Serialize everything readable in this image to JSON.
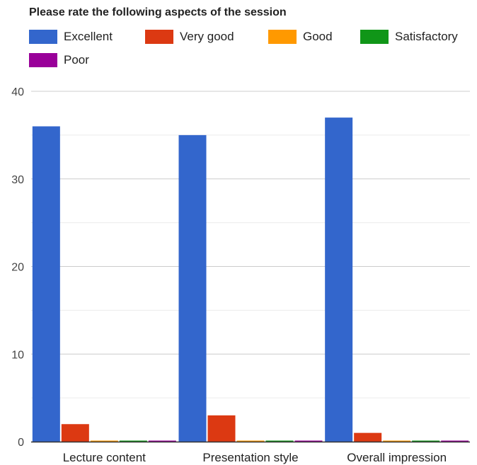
{
  "chart_data": {
    "type": "bar",
    "title": "Please rate the following aspects of the session",
    "categories": [
      "Lecture content",
      "Presentation style",
      "Overall impression"
    ],
    "series": [
      {
        "name": "Excellent",
        "color": "#3366cc",
        "values": [
          36,
          35,
          37
        ]
      },
      {
        "name": "Very good",
        "color": "#dc3912",
        "values": [
          2,
          3,
          1
        ]
      },
      {
        "name": "Good",
        "color": "#ff9900",
        "values": [
          0,
          0,
          0
        ]
      },
      {
        "name": "Satisfactory",
        "color": "#109618",
        "values": [
          0,
          0,
          0
        ]
      },
      {
        "name": "Poor",
        "color": "#990099",
        "values": [
          0,
          0,
          0
        ]
      }
    ],
    "ylim": [
      0,
      40
    ],
    "yticks": [
      0,
      10,
      20,
      30,
      40
    ],
    "grid": true,
    "legend_position": "top"
  }
}
